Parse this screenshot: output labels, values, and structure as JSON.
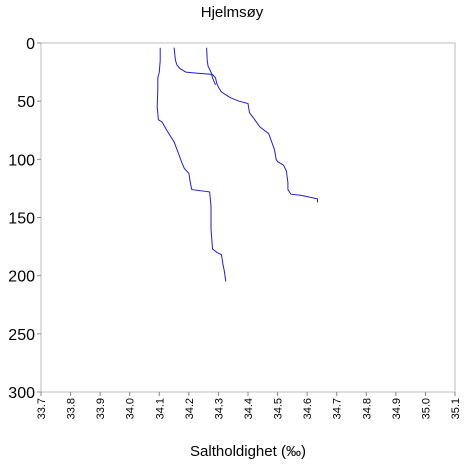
{
  "chart_data": {
    "type": "line",
    "title": "Hjelmsøy",
    "xlabel": "Saltholdighet (‰)",
    "ylabel": "",
    "xlim": [
      33.7,
      35.1
    ],
    "ylim": [
      0,
      300
    ],
    "y_inverted": true,
    "x_ticks": [
      "33.7",
      "33.8",
      "33.9",
      "34.0",
      "34.1",
      "34.2",
      "34.3",
      "34.4",
      "34.5",
      "34.6",
      "34.7",
      "34.8",
      "34.9",
      "35.0",
      "35.1"
    ],
    "y_ticks": [
      "0",
      "50",
      "100",
      "150",
      "200",
      "250",
      "300"
    ],
    "grid": false,
    "colors": {
      "series": "#1f1fd6",
      "axis": "#bdbdbd"
    },
    "series": [
      {
        "points": [
          [
            34.103,
            4
          ],
          [
            34.103,
            15
          ],
          [
            34.1,
            25
          ],
          [
            34.095,
            30
          ],
          [
            34.095,
            40
          ],
          [
            34.093,
            55
          ],
          [
            34.097,
            66
          ],
          [
            34.11,
            68
          ],
          [
            34.125,
            75
          ],
          [
            34.15,
            85
          ],
          [
            34.165,
            95
          ],
          [
            34.175,
            102
          ],
          [
            34.185,
            108
          ],
          [
            34.2,
            112
          ],
          [
            34.205,
            120
          ],
          [
            34.21,
            126
          ],
          [
            34.27,
            128
          ],
          [
            34.275,
            140
          ],
          [
            34.275,
            160
          ],
          [
            34.28,
            177
          ],
          [
            34.295,
            180
          ],
          [
            34.31,
            182
          ],
          [
            34.315,
            190
          ],
          [
            34.32,
            196
          ],
          [
            34.325,
            205
          ]
        ]
      },
      {
        "points": [
          [
            34.15,
            4
          ],
          [
            34.155,
            15
          ],
          [
            34.16,
            19
          ],
          [
            34.17,
            22
          ],
          [
            34.19,
            25
          ],
          [
            34.23,
            26
          ],
          [
            34.28,
            27
          ],
          [
            34.29,
            30
          ],
          [
            34.295,
            35
          ],
          [
            34.3,
            38
          ],
          [
            34.31,
            42
          ],
          [
            34.34,
            47
          ],
          [
            34.37,
            50
          ],
          [
            34.4,
            52
          ],
          [
            34.405,
            60
          ],
          [
            34.42,
            65
          ],
          [
            34.44,
            72
          ],
          [
            34.47,
            78
          ],
          [
            34.48,
            85
          ],
          [
            34.49,
            92
          ],
          [
            34.495,
            100
          ],
          [
            34.5,
            102
          ],
          [
            34.52,
            105
          ],
          [
            34.53,
            110
          ],
          [
            34.535,
            120
          ],
          [
            34.535,
            126
          ],
          [
            34.545,
            130
          ],
          [
            34.58,
            131
          ],
          [
            34.6,
            132
          ],
          [
            34.635,
            134
          ],
          [
            34.635,
            137
          ]
        ]
      },
      {
        "points": [
          [
            34.26,
            4
          ],
          [
            34.262,
            15
          ],
          [
            34.265,
            20
          ],
          [
            34.275,
            25
          ],
          [
            34.28,
            30
          ],
          [
            34.29,
            36
          ]
        ]
      }
    ]
  }
}
